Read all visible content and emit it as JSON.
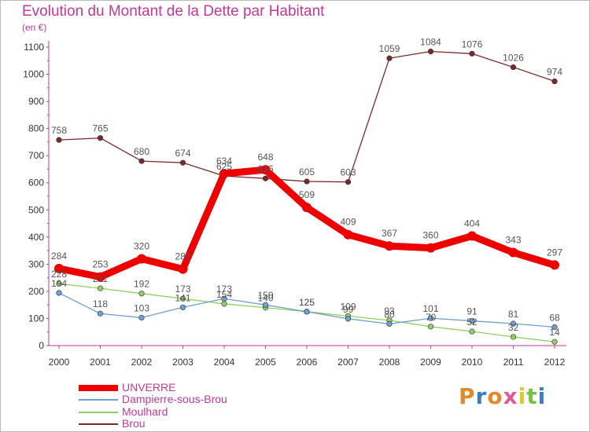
{
  "title": "Evolution du Montant de la Dette par Habitant",
  "subtitle": "(en €)",
  "logo": {
    "text": "Proxiti",
    "colors": [
      "#e08a2b",
      "#3b7dc4",
      "#e08a2b",
      "#e05a9b",
      "#e0c830",
      "#7bc043",
      "#3b7dc4"
    ]
  },
  "chart_data": {
    "type": "line",
    "title": "Evolution du Montant de la Dette par Habitant",
    "subtitle": "(en €)",
    "x": [
      "2000",
      "2001",
      "2002",
      "2003",
      "2004",
      "2005",
      "2006",
      "2007",
      "2008",
      "2009",
      "2010",
      "2011",
      "2012"
    ],
    "ylim": [
      0,
      1100
    ],
    "yticks": [
      0,
      100,
      200,
      300,
      400,
      500,
      600,
      700,
      800,
      900,
      1000,
      1100
    ],
    "grid": false,
    "legend_position": "bottom-left",
    "series": [
      {
        "name": "UNVERRE",
        "color": "#ee0000",
        "values": [
          284,
          253,
          320,
          282,
          634,
          648,
          509,
          409,
          367,
          360,
          404,
          343,
          297
        ]
      },
      {
        "name": "Dampierre-sous-Brou",
        "color": "#6fa0d0",
        "values": [
          194,
          118,
          103,
          141,
          173,
          150,
          125,
          99,
          80,
          101,
          91,
          81,
          68
        ]
      },
      {
        "name": "Moulhard",
        "color": "#90d060",
        "values": [
          228,
          211,
          192,
          173,
          154,
          140,
          125,
          109,
          93,
          70,
          52,
          32,
          14
        ]
      },
      {
        "name": "Brou",
        "color": "#7a2a2a",
        "values": [
          758,
          765,
          680,
          674,
          625,
          616,
          605,
          603,
          1059,
          1084,
          1076,
          1026,
          974
        ]
      }
    ]
  }
}
